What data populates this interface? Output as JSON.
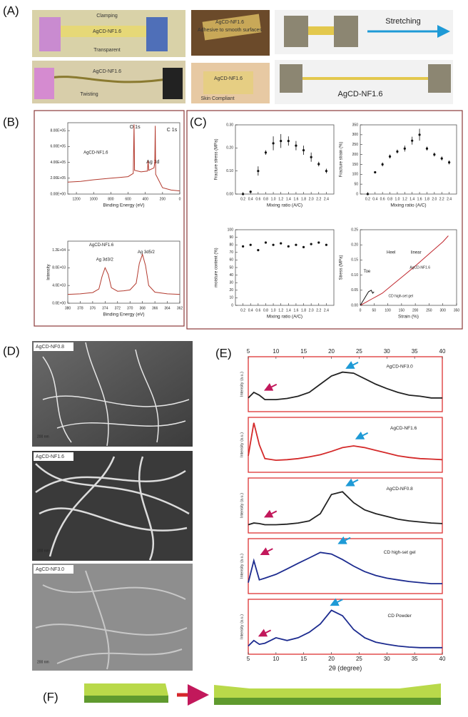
{
  "panel_labels": [
    "(A)",
    "(B)",
    "(C)",
    "(D)",
    "(E)",
    "(F)"
  ],
  "photos": {
    "clamping": [
      "Clamping",
      "AgCD-NF1.6",
      "Transparent"
    ],
    "twisting": [
      "AgCD-NF1.6",
      "Twisting"
    ],
    "adhesive": [
      "AgCD-NF1.6",
      "Adhesive to smooth surfaces"
    ],
    "skin": [
      "AgCD-NF1.6",
      "Skin Compliant"
    ],
    "stretch": "Stretching",
    "stretched": "AgCD-NF1.6"
  },
  "sem": [
    {
      "label": "AgCD-NF0.8",
      "scale": "200 nm"
    },
    {
      "label": "AgCD-NF1.6",
      "scale": "200 nm"
    },
    {
      "label": "AgCD-NF3.0",
      "scale": "200 nm"
    }
  ],
  "chart_data": [
    {
      "type": "line",
      "xlabel": "Binding Energy (eV)",
      "xlim": [
        1300,
        0
      ],
      "xticks": [
        1200,
        1000,
        800,
        600,
        400,
        200,
        0
      ],
      "ylim": [
        0,
        900000
      ],
      "yticks": [
        {
          "value": 0,
          "label": "0.00E+00"
        },
        {
          "value": 200000,
          "label": "2.00E+05"
        },
        {
          "value": 400000,
          "label": "4.00E+05"
        },
        {
          "value": 600000,
          "label": "6.00E+05"
        },
        {
          "value": 800000,
          "label": "8.00E+05"
        }
      ],
      "annotations": [
        "O 1s",
        "C 1s",
        "Ag 3d",
        "AgCD-NF1.6"
      ],
      "x": [
        1300,
        1150,
        1000,
        900,
        800,
        700,
        600,
        540,
        531,
        525,
        450,
        375,
        368,
        360,
        300,
        290,
        285,
        280,
        200,
        100,
        0
      ],
      "series": [
        {
          "color": "#b33a2e",
          "values": [
            150000,
            160000,
            180000,
            190000,
            200000,
            210000,
            220000,
            260000,
            880000,
            300000,
            280000,
            290000,
            420000,
            300000,
            330000,
            400000,
            860000,
            250000,
            80000,
            50000,
            40000
          ]
        }
      ]
    },
    {
      "type": "line",
      "xlabel": "Binding Energy (eV)",
      "ylabel": "Intensity",
      "xlim": [
        380,
        362
      ],
      "xticks": [
        380,
        378,
        376,
        374,
        372,
        370,
        368,
        366,
        364,
        362
      ],
      "ylim": [
        0,
        14000
      ],
      "yticks": [
        {
          "value": 0,
          "label": "0.0E+00"
        },
        {
          "value": 4000,
          "label": "4.0E+03"
        },
        {
          "value": 8000,
          "label": "8.0E+03"
        },
        {
          "value": 12000,
          "label": "1.2E+04"
        }
      ],
      "annotations": [
        "AgCD-NF1.6",
        "Ag 3d3/2",
        "Ag 3d5/2"
      ],
      "x": [
        380,
        378,
        376,
        375,
        374.5,
        374,
        373.5,
        373,
        372,
        371,
        370,
        369,
        368.5,
        368,
        367.5,
        367,
        366,
        364,
        362
      ],
      "series": [
        {
          "color": "#b33a2e",
          "values": [
            2000,
            2100,
            2400,
            3200,
            6000,
            8000,
            6500,
            3500,
            2700,
            2800,
            3000,
            4500,
            9000,
            11000,
            8500,
            4000,
            2500,
            2100,
            2000
          ]
        }
      ]
    },
    {
      "type": "scatter",
      "xlabel": "Mixing ratio (A/C)",
      "ylabel": "Fracture stress (MPa)",
      "xlim": [
        0,
        2.6
      ],
      "xticks": [
        0.2,
        0.4,
        0.6,
        0.8,
        {
          "value": 1,
          "label": "1.0"
        },
        1.2,
        1.4,
        1.6,
        1.8,
        {
          "value": 2,
          "label": "2.0"
        },
        2.2,
        2.4
      ],
      "ylim": [
        0,
        0.3
      ],
      "yticks": [
        {
          "value": 0,
          "label": "0.00"
        },
        {
          "value": 0.1,
          "label": "0.10"
        },
        {
          "value": 0.2,
          "label": "0.20"
        },
        {
          "value": 0.3,
          "label": "0.30"
        }
      ],
      "x": [
        0.2,
        0.4,
        0.6,
        0.8,
        1.0,
        1.2,
        1.4,
        1.6,
        1.8,
        2.0,
        2.2,
        2.4
      ],
      "series": [
        {
          "color": "#111111",
          "values": [
            0,
            0.01,
            0.1,
            0.18,
            0.22,
            0.23,
            0.23,
            0.21,
            0.19,
            0.16,
            0.13,
            0.1
          ],
          "errors": [
            0,
            0,
            0.02,
            0.01,
            0.03,
            0.03,
            0.02,
            0.02,
            0.02,
            0.02,
            0.01,
            0.01
          ]
        }
      ]
    },
    {
      "type": "scatter",
      "xlabel": "Mixing ratio (A/C)",
      "ylabel": "Fracture strain (%)",
      "xlim": [
        0,
        2.6
      ],
      "xticks": [
        0.2,
        0.4,
        0.6,
        0.8,
        {
          "value": 1,
          "label": "1.0"
        },
        1.2,
        1.4,
        1.6,
        1.8,
        {
          "value": 2,
          "label": "2.0"
        },
        2.2,
        2.4
      ],
      "ylim": [
        0,
        350
      ],
      "yticks": [
        0,
        50,
        100,
        150,
        200,
        250,
        300,
        350
      ],
      "x": [
        0.2,
        0.4,
        0.6,
        0.8,
        1.0,
        1.2,
        1.4,
        1.6,
        1.8,
        2.0,
        2.2,
        2.4
      ],
      "series": [
        {
          "color": "#111111",
          "values": [
            0,
            110,
            150,
            190,
            215,
            230,
            270,
            300,
            230,
            200,
            180,
            160
          ],
          "errors": [
            0,
            0,
            10,
            10,
            10,
            15,
            20,
            30,
            10,
            10,
            10,
            10
          ]
        }
      ]
    },
    {
      "type": "scatter",
      "xlabel": "Mixing ratio (A/C)",
      "ylabel": "moisture content (%)",
      "xlim": [
        0,
        2.6
      ],
      "xticks": [
        0.2,
        0.4,
        0.6,
        0.8,
        {
          "value": 1,
          "label": "1.0"
        },
        1.2,
        1.4,
        1.6,
        1.8,
        {
          "value": 2,
          "label": "2.0"
        },
        2.2,
        2.4
      ],
      "ylim": [
        0,
        100
      ],
      "yticks": [
        0,
        10,
        20,
        30,
        40,
        50,
        60,
        70,
        80,
        90,
        100
      ],
      "x": [
        0.2,
        0.4,
        0.6,
        0.8,
        1.0,
        1.2,
        1.4,
        1.6,
        1.8,
        2.0,
        2.2,
        2.4
      ],
      "series": [
        {
          "color": "#111111",
          "values": [
            78,
            80,
            73,
            83,
            80,
            82,
            78,
            80,
            77,
            81,
            83,
            80
          ]
        }
      ]
    },
    {
      "type": "line",
      "xlabel": "Strain (%)",
      "ylabel": "Stress (MPa)",
      "xlim": [
        0,
        350
      ],
      "xticks": [
        0,
        50,
        100,
        150,
        200,
        250,
        300,
        350
      ],
      "ylim": [
        0,
        0.25
      ],
      "yticks": [
        {
          "value": 0,
          "label": "0.00"
        },
        {
          "value": 0.05,
          "label": "0.05"
        },
        {
          "value": 0.1,
          "label": "0.10"
        },
        {
          "value": 0.15,
          "label": "0.15"
        },
        {
          "value": 0.2,
          "label": "0.20"
        },
        {
          "value": 0.25,
          "label": "0.25"
        }
      ],
      "annotations": [
        "Toe",
        "Heel",
        "linear"
      ],
      "series": [
        {
          "name": "AgCD-NF1.6",
          "color": "#c0262d",
          "x": [
            0,
            20,
            40,
            60,
            80,
            120,
            160,
            200,
            250,
            300,
            320
          ],
          "values": [
            0,
            0.01,
            0.02,
            0.03,
            0.04,
            0.07,
            0.1,
            0.13,
            0.17,
            0.21,
            0.23
          ]
        },
        {
          "name": "CD high-set gel",
          "color": "#111111",
          "x": [
            0,
            10,
            20,
            30,
            40,
            45,
            50
          ],
          "values": [
            0,
            0.015,
            0.03,
            0.045,
            0.05,
            0.04,
            0.045
          ]
        }
      ]
    },
    {
      "type": "line",
      "ylabel": "Intensity (a.u.)",
      "xlim": [
        5,
        40
      ],
      "xticks": [
        5,
        10,
        15,
        20,
        25,
        30,
        35,
        40
      ],
      "xtick_side": "top",
      "ylim": [
        0,
        100
      ],
      "x": [
        5,
        6,
        7,
        8,
        10,
        12,
        14,
        16,
        18,
        20,
        22,
        24,
        26,
        28,
        30,
        32,
        34,
        36,
        38,
        40
      ],
      "series": [
        {
          "name": "AgCD-NF3.0",
          "color": "#222222",
          "values": [
            25,
            35,
            30,
            22,
            22,
            24,
            28,
            35,
            50,
            65,
            72,
            70,
            60,
            50,
            42,
            35,
            30,
            28,
            25,
            25
          ]
        }
      ]
    },
    {
      "type": "line",
      "ylabel": "Intensity (a.u.)",
      "xlim": [
        5,
        40
      ],
      "ylim": [
        0,
        100
      ],
      "x": [
        5,
        6,
        7,
        8,
        10,
        12,
        14,
        16,
        18,
        20,
        22,
        24,
        26,
        28,
        30,
        32,
        34,
        36,
        38,
        40
      ],
      "series": [
        {
          "name": "AgCD-NF1.6",
          "color": "#d42a2a",
          "values": [
            30,
            90,
            50,
            25,
            22,
            23,
            25,
            28,
            32,
            38,
            45,
            48,
            45,
            40,
            35,
            30,
            27,
            25,
            24,
            23
          ]
        }
      ]
    },
    {
      "type": "line",
      "ylabel": "Intensity (a.u.)",
      "xlim": [
        5,
        40
      ],
      "ylim": [
        0,
        100
      ],
      "x": [
        5,
        6,
        7,
        8,
        10,
        12,
        14,
        16,
        18,
        20,
        22,
        24,
        26,
        28,
        30,
        32,
        34,
        36,
        38,
        40
      ],
      "series": [
        {
          "name": "AgCD-NF0.8",
          "color": "#222222",
          "values": [
            15,
            18,
            17,
            15,
            15,
            16,
            18,
            22,
            35,
            70,
            75,
            55,
            42,
            35,
            30,
            25,
            22,
            20,
            18,
            17
          ]
        }
      ]
    },
    {
      "type": "line",
      "ylabel": "Intensity (a.u.)",
      "xlim": [
        5,
        40
      ],
      "ylim": [
        0,
        100
      ],
      "x": [
        5,
        6,
        7,
        8,
        10,
        12,
        14,
        16,
        18,
        20,
        22,
        24,
        26,
        28,
        30,
        32,
        34,
        36,
        38,
        40
      ],
      "series": [
        {
          "name": "CD high-set gel",
          "color": "#1c2b8f",
          "values": [
            20,
            60,
            25,
            28,
            35,
            45,
            55,
            65,
            75,
            72,
            62,
            50,
            40,
            33,
            28,
            25,
            22,
            20,
            18,
            18
          ]
        }
      ]
    },
    {
      "type": "line",
      "ylabel": "Intensity (a.u.)",
      "xlabel": "2θ (degree)",
      "xlim": [
        5,
        40
      ],
      "xticks": [
        5,
        10,
        15,
        20,
        25,
        30,
        35,
        40
      ],
      "ylim": [
        0,
        100
      ],
      "x": [
        5,
        6,
        7,
        8,
        10,
        12,
        14,
        16,
        18,
        20,
        22,
        24,
        26,
        28,
        30,
        32,
        34,
        36,
        38,
        40
      ],
      "series": [
        {
          "name": "CD Powder",
          "color": "#1c2b8f",
          "values": [
            15,
            25,
            18,
            20,
            30,
            25,
            30,
            40,
            55,
            80,
            70,
            45,
            30,
            22,
            18,
            15,
            13,
            12,
            12,
            12
          ]
        }
      ]
    }
  ]
}
